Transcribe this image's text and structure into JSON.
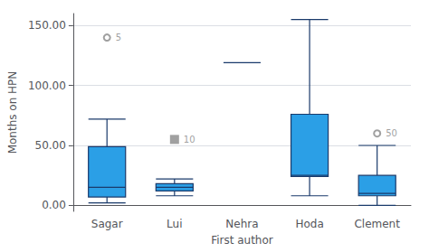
{
  "chart_data": {
    "type": "box",
    "xlabel": "First author",
    "ylabel": "Months on HPN",
    "categories": [
      "Sagar",
      "Lui",
      "Nehra",
      "Hoda",
      "Clement"
    ],
    "boxes": [
      {
        "q1": 7,
        "median": 15,
        "q3": 49,
        "whislo": 2,
        "whishi": 72,
        "fliers": [
          140
        ],
        "flier_labels": [
          "5"
        ],
        "marker": "circle"
      },
      {
        "q1": 12,
        "median": 15,
        "q3": 18,
        "whislo": 8,
        "whishi": 22,
        "fliers": [
          55
        ],
        "flier_labels": [
          "10"
        ],
        "marker": "star"
      },
      {
        "q1": 119,
        "median": 119,
        "q3": 119,
        "whislo": 119,
        "whishi": 119,
        "fliers": [],
        "flier_labels": []
      },
      {
        "q1": 24,
        "median": 25,
        "q3": 76,
        "whislo": 8,
        "whishi": 155,
        "fliers": [],
        "flier_labels": []
      },
      {
        "q1": 8,
        "median": 10,
        "q3": 25,
        "whislo": 0,
        "whishi": 50,
        "fliers": [
          60
        ],
        "flier_labels": [
          "50"
        ],
        "marker": "circle"
      }
    ],
    "color": "#2B9FE6",
    "ylim": [
      -5,
      160
    ],
    "yticks": [
      {
        "value": 0,
        "label": "0.00"
      },
      {
        "value": 50,
        "label": "50.00"
      },
      {
        "value": 100,
        "label": "100.00"
      },
      {
        "value": 150,
        "label": "150.00"
      }
    ],
    "grid": true
  }
}
